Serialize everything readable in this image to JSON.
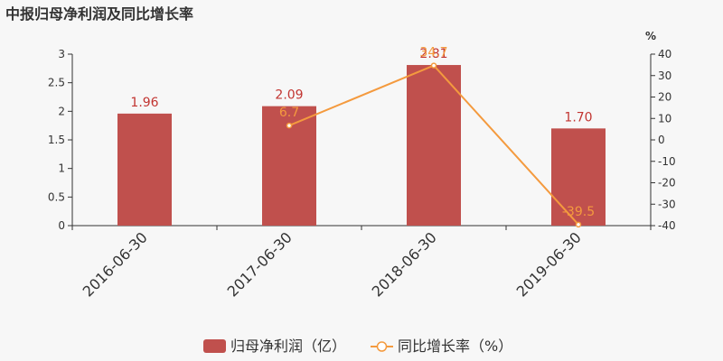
{
  "chart_data": {
    "type": "bar",
    "title": "中报归母净利润及同比增长率",
    "categories": [
      "2016-06-30",
      "2017-06-30",
      "2018-06-30",
      "2019-06-30"
    ],
    "series": [
      {
        "name": "归母净利润（亿）",
        "type": "bar",
        "axis": "left",
        "values": [
          1.96,
          2.09,
          2.81,
          1.7
        ],
        "labels": [
          "1.96",
          "2.09",
          "2.81",
          "1.70"
        ]
      },
      {
        "name": "同比增长率（%）",
        "type": "line",
        "axis": "right",
        "values": [
          null,
          6.7,
          34.7,
          -39.5
        ],
        "labels": [
          "",
          "6.7",
          "34.7",
          "-39.5"
        ]
      }
    ],
    "y_left": {
      "min": 0,
      "max": 3,
      "ticks": [
        "0",
        "0.5",
        "1",
        "1.5",
        "2",
        "2.5",
        "3"
      ],
      "tick_values": [
        0,
        0.5,
        1,
        1.5,
        2,
        2.5,
        3
      ]
    },
    "y_right": {
      "min": -40,
      "max": 40,
      "unit": "%",
      "ticks": [
        "-40",
        "-30",
        "-20",
        "-10",
        "0",
        "10",
        "20",
        "30",
        "40"
      ],
      "tick_values": [
        -40,
        -30,
        -20,
        -10,
        0,
        10,
        20,
        30,
        40
      ]
    },
    "legend_position": "bottom-center",
    "colors": {
      "bar": "#c0504d",
      "line": "#f49a3e",
      "axis": "#333333"
    }
  }
}
